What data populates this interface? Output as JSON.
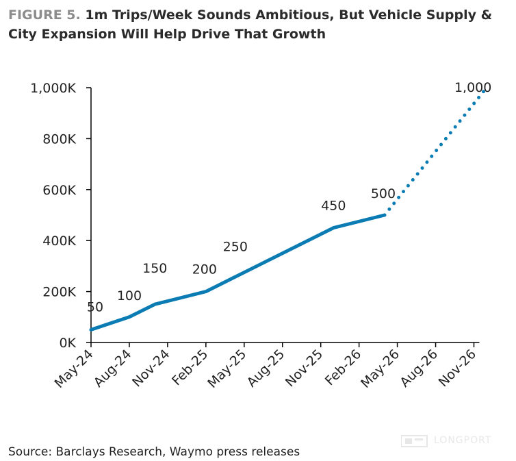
{
  "title_prefix": "FIGURE 5.",
  "title_text": "1m Trips/Week Sounds Ambitious, But Vehicle Supply & City Expansion Will Help Drive That Growth",
  "source": "Source: Barclays Research, Waymo press releases",
  "watermark": "LONGPORT",
  "colors": {
    "line": "#0a7cb3",
    "axis": "#000000",
    "fig_prefix": "#8c8c8c"
  },
  "chart_data": {
    "type": "line",
    "title": "",
    "xlabel": "",
    "ylabel": "",
    "ylim": [
      0,
      1000
    ],
    "y_ticks": [
      {
        "value": 0,
        "label": "0K"
      },
      {
        "value": 200,
        "label": "200K"
      },
      {
        "value": 400,
        "label": "400K"
      },
      {
        "value": 600,
        "label": "600K"
      },
      {
        "value": 800,
        "label": "800K"
      },
      {
        "value": 1000,
        "label": "1,000K"
      }
    ],
    "x_ticks": [
      "May-24",
      "Aug-24",
      "Nov-24",
      "Feb-25",
      "May-25",
      "Aug-25",
      "Nov-25",
      "Feb-26",
      "May-26",
      "Aug-26",
      "Nov-26"
    ],
    "series": [
      {
        "style": "solid",
        "points": [
          {
            "x": "May-24",
            "y": 50,
            "label": "50"
          },
          {
            "x": "Aug-24",
            "y": 100,
            "label": "100"
          },
          {
            "x": "Oct-24",
            "y": 150,
            "label": "150"
          },
          {
            "x": "Feb-25",
            "y": 200,
            "label": "200"
          },
          {
            "x": "Apr-25",
            "y": 250,
            "label": ""
          },
          {
            "x": "Dec-25",
            "y": 450,
            "label": "450"
          },
          {
            "x": "Apr-26",
            "y": 500,
            "label": "500"
          }
        ]
      },
      {
        "style": "dotted",
        "points": [
          {
            "x": "Apr-26",
            "y": 500,
            "label": ""
          },
          {
            "x": "Dec-26",
            "y": 1000,
            "label": "1,000"
          }
        ]
      }
    ],
    "annotations": [
      {
        "x": "May-25",
        "y": 380,
        "text": "250"
      }
    ],
    "grid": false,
    "legend": "none"
  }
}
